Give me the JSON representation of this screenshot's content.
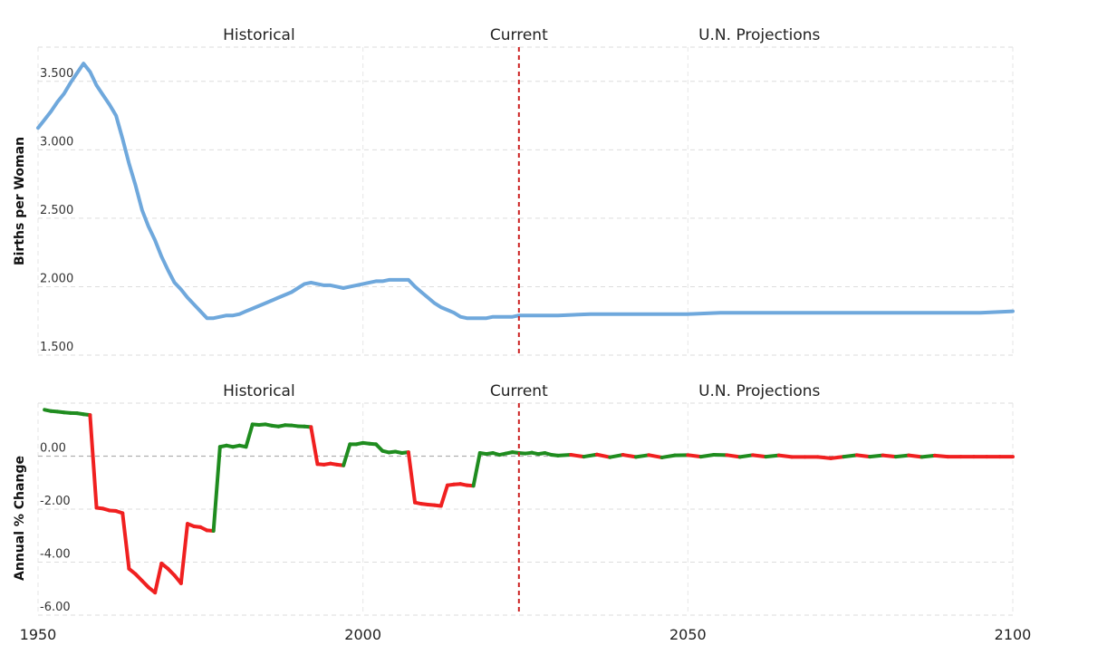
{
  "chart_data": [
    {
      "type": "line",
      "ylabel": "Births per Woman",
      "xlim": [
        1950,
        2100
      ],
      "ylim": [
        1.5,
        3.75
      ],
      "y_ticks": [
        {
          "value": 1.5,
          "label": "1.500"
        },
        {
          "value": 2.0,
          "label": "2.000"
        },
        {
          "value": 2.5,
          "label": "2.500"
        },
        {
          "value": 3.0,
          "label": "3.000"
        },
        {
          "value": 3.5,
          "label": "3.500"
        }
      ],
      "x_ticks": [
        1950,
        2000,
        2050,
        2100
      ],
      "current_year": 2024,
      "eras": [
        {
          "label": "Historical",
          "x": 1984
        },
        {
          "label": "Current",
          "x": 2024
        },
        {
          "label": "U.N. Projections",
          "x": 2061
        }
      ],
      "grid": true,
      "series": [
        {
          "color": "#6fa8dc",
          "x": [
            1950,
            1951,
            1952,
            1953,
            1954,
            1955,
            1956,
            1957,
            1958,
            1959,
            1960,
            1961,
            1962,
            1963,
            1964,
            1965,
            1966,
            1967,
            1968,
            1969,
            1970,
            1971,
            1972,
            1973,
            1974,
            1975,
            1976,
            1977,
            1978,
            1979,
            1980,
            1981,
            1982,
            1983,
            1984,
            1985,
            1986,
            1987,
            1988,
            1989,
            1990,
            1991,
            1992,
            1993,
            1994,
            1995,
            1996,
            1997,
            1998,
            1999,
            2000,
            2001,
            2002,
            2003,
            2004,
            2005,
            2006,
            2007,
            2008,
            2009,
            2010,
            2011,
            2012,
            2013,
            2014,
            2015,
            2016,
            2017,
            2018,
            2019,
            2020,
            2021,
            2022,
            2023,
            2024,
            2025,
            2030,
            2035,
            2040,
            2045,
            2050,
            2055,
            2060,
            2065,
            2070,
            2075,
            2080,
            2085,
            2090,
            2095,
            2100
          ],
          "y": [
            3.16,
            3.22,
            3.28,
            3.35,
            3.41,
            3.49,
            3.56,
            3.63,
            3.57,
            3.47,
            3.4,
            3.33,
            3.25,
            3.08,
            2.9,
            2.74,
            2.56,
            2.44,
            2.34,
            2.22,
            2.12,
            2.03,
            1.98,
            1.92,
            1.87,
            1.82,
            1.77,
            1.77,
            1.78,
            1.79,
            1.79,
            1.8,
            1.82,
            1.84,
            1.86,
            1.88,
            1.9,
            1.92,
            1.94,
            1.96,
            1.99,
            2.02,
            2.03,
            2.02,
            2.01,
            2.01,
            2.0,
            1.99,
            2.0,
            2.01,
            2.02,
            2.03,
            2.04,
            2.04,
            2.05,
            2.05,
            2.05,
            2.05,
            2.0,
            1.96,
            1.92,
            1.88,
            1.85,
            1.83,
            1.81,
            1.78,
            1.77,
            1.77,
            1.77,
            1.77,
            1.78,
            1.78,
            1.78,
            1.78,
            1.79,
            1.79,
            1.79,
            1.8,
            1.8,
            1.8,
            1.8,
            1.81,
            1.81,
            1.81,
            1.81,
            1.81,
            1.81,
            1.81,
            1.81,
            1.81,
            1.82
          ]
        }
      ]
    },
    {
      "type": "line",
      "ylabel": "Annual % Change",
      "xlim": [
        1950,
        2100
      ],
      "ylim": [
        -6.0,
        2.0
      ],
      "y_ticks": [
        {
          "value": -6.0,
          "label": "-6.00"
        },
        {
          "value": -4.0,
          "label": "-4.00"
        },
        {
          "value": -2.0,
          "label": "-2.00"
        },
        {
          "value": 0.0,
          "label": "0.00"
        }
      ],
      "x_ticks": [
        1950,
        2000,
        2050,
        2100
      ],
      "current_year": 2024,
      "eras": [
        {
          "label": "Historical",
          "x": 1984
        },
        {
          "label": "Current",
          "x": 2024
        },
        {
          "label": "U.N. Projections",
          "x": 2061
        }
      ],
      "grid": true,
      "positive_color": "#1f8c1f",
      "negative_color": "#f02020",
      "series": [
        {
          "x": [
            1951,
            1952,
            1953,
            1954,
            1955,
            1956,
            1957,
            1958,
            1959,
            1960,
            1961,
            1962,
            1963,
            1964,
            1965,
            1966,
            1967,
            1968,
            1969,
            1970,
            1971,
            1972,
            1973,
            1974,
            1975,
            1976,
            1977,
            1978,
            1979,
            1980,
            1981,
            1982,
            1983,
            1984,
            1985,
            1986,
            1987,
            1988,
            1989,
            1990,
            1991,
            1992,
            1993,
            1994,
            1995,
            1996,
            1997,
            1998,
            1999,
            2000,
            2001,
            2002,
            2003,
            2004,
            2005,
            2006,
            2007,
            2008,
            2009,
            2010,
            2011,
            2012,
            2013,
            2014,
            2015,
            2016,
            2017,
            2018,
            2019,
            2020,
            2021,
            2022,
            2023,
            2024,
            2025,
            2026,
            2027,
            2028,
            2029,
            2030,
            2032,
            2034,
            2036,
            2038,
            2040,
            2042,
            2044,
            2046,
            2048,
            2050,
            2052,
            2054,
            2056,
            2058,
            2060,
            2062,
            2064,
            2066,
            2068,
            2070,
            2072,
            2074,
            2076,
            2078,
            2080,
            2082,
            2084,
            2086,
            2088,
            2090,
            2092,
            2094,
            2096,
            2098,
            2100
          ],
          "y": [
            1.75,
            1.7,
            1.68,
            1.65,
            1.63,
            1.62,
            1.58,
            1.55,
            -1.95,
            -1.98,
            -2.05,
            -2.07,
            -2.15,
            -4.25,
            -4.45,
            -4.7,
            -4.95,
            -5.15,
            -4.05,
            -4.25,
            -4.5,
            -4.8,
            -2.55,
            -2.65,
            -2.68,
            -2.8,
            -2.82,
            0.35,
            0.4,
            0.35,
            0.4,
            0.35,
            1.2,
            1.18,
            1.2,
            1.15,
            1.12,
            1.17,
            1.16,
            1.13,
            1.12,
            1.1,
            -0.3,
            -0.32,
            -0.28,
            -0.32,
            -0.35,
            0.45,
            0.45,
            0.5,
            0.47,
            0.45,
            0.2,
            0.14,
            0.17,
            0.12,
            0.15,
            -1.75,
            -1.8,
            -1.83,
            -1.85,
            -1.88,
            -1.1,
            -1.07,
            -1.05,
            -1.1,
            -1.12,
            0.12,
            0.08,
            0.12,
            0.05,
            0.1,
            0.15,
            0.12,
            0.1,
            0.13,
            0.08,
            0.12,
            0.05,
            0.02,
            0.05,
            -0.02,
            0.06,
            -0.04,
            0.05,
            -0.03,
            0.04,
            -0.05,
            0.03,
            0.04,
            -0.02,
            0.05,
            0.04,
            -0.03,
            0.04,
            -0.02,
            0.03,
            -0.03,
            -0.03,
            -0.03,
            -0.08,
            -0.02,
            0.04,
            -0.02,
            0.03,
            -0.02,
            0.03,
            -0.03,
            0.02,
            -0.02,
            -0.02,
            -0.02,
            -0.02,
            -0.02,
            -0.02
          ]
        }
      ]
    }
  ]
}
